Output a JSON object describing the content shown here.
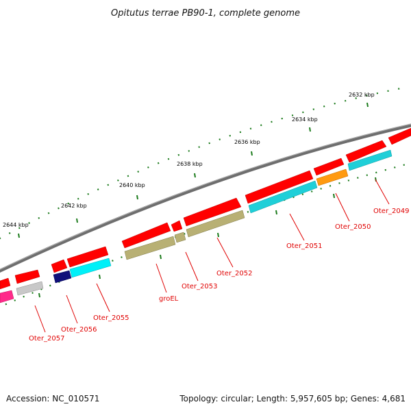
{
  "title": "Opitutus terrae PB90-1, complete genome",
  "footer": {
    "accession": "Accession: NC_010571",
    "topology": "Topology: circular; Length: 5,957,605 bp; Genes: 4,681"
  },
  "scale_labels": [
    "2632 kbp",
    "2634 kbp",
    "2636 kbp",
    "2638 kbp",
    "2640 kbp",
    "2642 kbp",
    "2644 kbp"
  ],
  "gene_labels": [
    "Oter_2049",
    "Oter_2050",
    "Oter_2051",
    "Oter_2052",
    "Oter_2053",
    "groEL",
    "Oter_2055",
    "Oter_2056",
    "Oter_2057"
  ],
  "colors": {
    "cds": "#ff0000",
    "backbone": "#808080",
    "cyan": "#00e5f5",
    "teal": "#1fcfd8",
    "olive": "#b8b074",
    "orange": "#ff9a10",
    "navy": "#10107a",
    "magenta": "#ff2a8a",
    "grey_feature": "#c8c8c8",
    "tick": "#1a7a1a",
    "label": "#e00000"
  }
}
